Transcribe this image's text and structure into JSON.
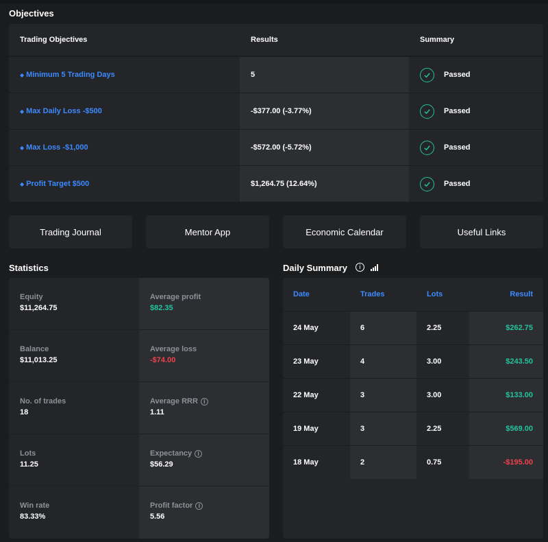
{
  "objectives": {
    "title": "Objectives",
    "headers": {
      "objective": "Trading Objectives",
      "results": "Results",
      "summary": "Summary"
    },
    "rows": [
      {
        "objective": "Minimum 5 Trading Days",
        "result": "5",
        "status": "Passed"
      },
      {
        "objective": "Max Daily Loss -$500",
        "result": "-$377.00 (-3.77%)",
        "status": "Passed"
      },
      {
        "objective": "Max Loss -$1,000",
        "result": "-$572.00 (-5.72%)",
        "status": "Passed"
      },
      {
        "objective": "Profit Target $500",
        "result": "$1,264.75 (12.64%)",
        "status": "Passed"
      }
    ]
  },
  "nav": {
    "trading_journal": "Trading Journal",
    "mentor_app": "Mentor App",
    "economic_calendar": "Economic Calendar",
    "useful_links": "Useful Links"
  },
  "statistics": {
    "title": "Statistics",
    "equity": {
      "label": "Equity",
      "value": "$11,264.75"
    },
    "average_profit": {
      "label": "Average profit",
      "value": "$82.35"
    },
    "balance": {
      "label": "Balance",
      "value": "$11,013.25"
    },
    "average_loss": {
      "label": "Average loss",
      "value": "-$74.00"
    },
    "no_of_trades": {
      "label": "No. of trades",
      "value": "18"
    },
    "average_rrr": {
      "label": "Average RRR",
      "value": "1.11"
    },
    "lots": {
      "label": "Lots",
      "value": "11.25"
    },
    "expectancy": {
      "label": "Expectancy",
      "value": "$56.29"
    },
    "win_rate": {
      "label": "Win rate",
      "value": "83.33%"
    },
    "profit_factor": {
      "label": "Profit factor",
      "value": "5.56"
    }
  },
  "daily_summary": {
    "title": "Daily Summary",
    "headers": {
      "date": "Date",
      "trades": "Trades",
      "lots": "Lots",
      "result": "Result"
    },
    "rows": [
      {
        "date": "24 May",
        "trades": "6",
        "lots": "2.25",
        "result": "$262.75"
      },
      {
        "date": "23 May",
        "trades": "4",
        "lots": "3.00",
        "result": "$243.50"
      },
      {
        "date": "22 May",
        "trades": "3",
        "lots": "3.00",
        "result": "$133.00"
      },
      {
        "date": "19 May",
        "trades": "3",
        "lots": "2.25",
        "result": "$569.00"
      },
      {
        "date": "18 May",
        "trades": "2",
        "lots": "0.75",
        "result": "-$195.00"
      }
    ]
  },
  "colors": {
    "background": "#1b1c1e",
    "panel": "#232528",
    "accent_blue": "#3d8bff",
    "positive": "#23c49d",
    "negative": "#f0424f"
  },
  "icons": {
    "objective_bullet": "diamond-icon",
    "status": "check-circle-icon",
    "info": "info-icon",
    "chart": "bar-chart-icon"
  }
}
